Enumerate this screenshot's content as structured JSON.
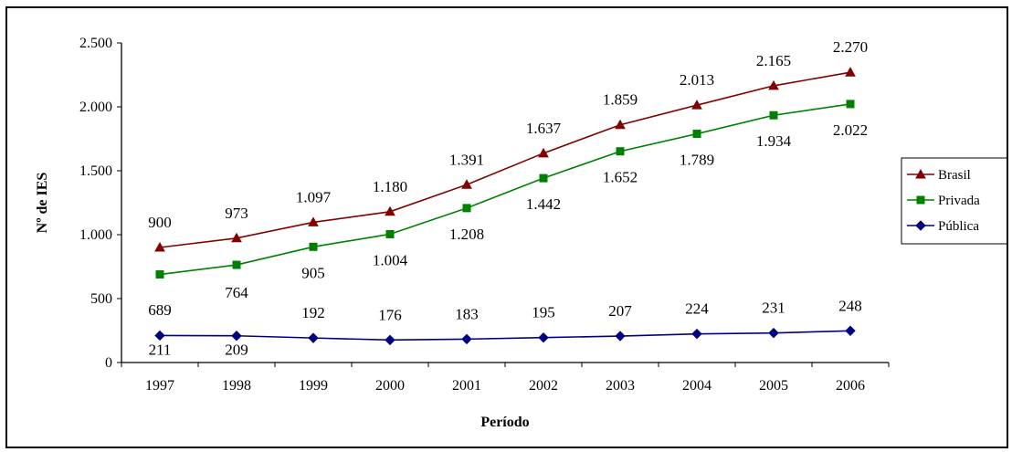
{
  "chart_data": {
    "type": "line",
    "title": "",
    "xlabel": "Período",
    "ylabel": "Nº de IES",
    "categories": [
      "1997",
      "1998",
      "1999",
      "2000",
      "2001",
      "2002",
      "2003",
      "2004",
      "2005",
      "2006"
    ],
    "ylim": [
      0,
      2500
    ],
    "y_ticks": [
      0,
      500,
      1000,
      1500,
      2000,
      2500
    ],
    "y_tick_labels": [
      "0",
      "500",
      "1.000",
      "1.500",
      "2.000",
      "2.500"
    ],
    "grid": false,
    "legend_position": "right",
    "series": [
      {
        "name": "Brasil",
        "color": "#800000",
        "marker": "triangle",
        "marker_color": "#800000",
        "values": [
          900,
          973,
          1097,
          1180,
          1391,
          1637,
          1859,
          2013,
          2165,
          2270
        ],
        "labels": [
          "900",
          "973",
          "1.097",
          "1.180",
          "1.391",
          "1.637",
          "1.859",
          "2.013",
          "2.165",
          "2.270"
        ]
      },
      {
        "name": "Privada",
        "color": "#008000",
        "marker": "square",
        "marker_color": "#008000",
        "values": [
          689,
          764,
          905,
          1004,
          1208,
          1442,
          1652,
          1789,
          1934,
          2022
        ],
        "labels": [
          "689",
          "764",
          "905",
          "1.004",
          "1.208",
          "1.442",
          "1.652",
          "1.789",
          "1.934",
          "2.022"
        ]
      },
      {
        "name": "Pública",
        "color": "#000080",
        "marker": "diamond",
        "marker_color": "#000080",
        "values": [
          211,
          209,
          192,
          176,
          183,
          195,
          207,
          224,
          231,
          248
        ],
        "labels": [
          "211",
          "209",
          "192",
          "176",
          "183",
          "195",
          "207",
          "224",
          "231",
          "248"
        ]
      }
    ]
  }
}
